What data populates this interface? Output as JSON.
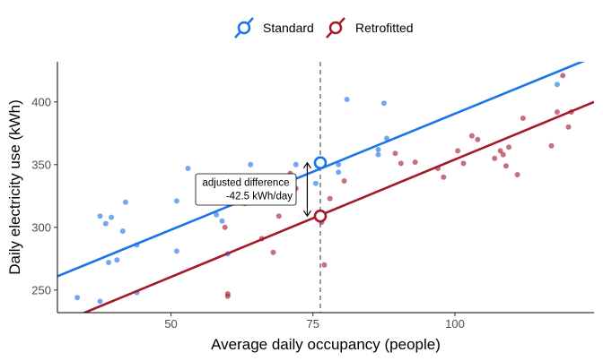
{
  "chart_data": {
    "type": "scatter",
    "xlabel": "Average daily occupancy (people)",
    "ylabel": "Daily electricity use (kWh)",
    "xlim": [
      30,
      124.5
    ],
    "ylim": [
      232,
      432
    ],
    "x_ticks": [
      50,
      75,
      100
    ],
    "y_ticks": [
      250,
      300,
      350,
      400
    ],
    "grid": false,
    "legend_position": "top",
    "reference_x": 76.3,
    "series": [
      {
        "name": "Standard",
        "color": "#1a75e8",
        "points": [
          [
            33.5,
            244
          ],
          [
            37.5,
            241
          ],
          [
            37.5,
            309
          ],
          [
            38.5,
            303
          ],
          [
            39.5,
            308
          ],
          [
            39,
            272
          ],
          [
            40.5,
            274
          ],
          [
            42,
            320
          ],
          [
            41.5,
            297
          ],
          [
            44,
            248
          ],
          [
            44,
            286
          ],
          [
            51,
            281
          ],
          [
            51,
            321
          ],
          [
            53,
            347
          ],
          [
            58,
            310
          ],
          [
            59,
            305
          ],
          [
            60,
            279
          ],
          [
            63,
            319
          ],
          [
            64,
            350
          ],
          [
            69,
            340
          ],
          [
            72,
            350
          ],
          [
            75.5,
            335
          ],
          [
            79.5,
            350
          ],
          [
            79.5,
            344
          ],
          [
            81,
            402
          ],
          [
            86.5,
            362
          ],
          [
            86.5,
            358
          ],
          [
            87.5,
            399
          ],
          [
            88,
            371
          ],
          [
            118,
            414
          ]
        ],
        "fit": {
          "x": [
            30,
            124.5
          ],
          "y": [
            261.0,
            436.0
          ]
        },
        "marker": {
          "x": 76.3,
          "y": 351.5
        }
      },
      {
        "name": "Retrofitted",
        "color": "#a31a28",
        "points": [
          [
            59.5,
            300
          ],
          [
            60,
            245
          ],
          [
            60,
            247
          ],
          [
            66,
            291
          ],
          [
            68,
            280
          ],
          [
            69,
            309
          ],
          [
            71,
            343
          ],
          [
            72,
            331
          ],
          [
            76.5,
            304
          ],
          [
            77,
            270
          ],
          [
            78,
            323
          ],
          [
            80.5,
            337
          ],
          [
            89.5,
            359
          ],
          [
            90.5,
            351
          ],
          [
            93,
            352
          ],
          [
            97,
            347
          ],
          [
            98,
            340
          ],
          [
            100.5,
            361
          ],
          [
            101.5,
            351
          ],
          [
            103,
            373
          ],
          [
            104,
            370
          ],
          [
            107,
            355
          ],
          [
            108,
            361
          ],
          [
            108.5,
            358
          ],
          [
            109,
            349
          ],
          [
            109.5,
            364
          ],
          [
            111,
            342
          ],
          [
            112,
            387
          ],
          [
            117,
            365
          ],
          [
            118,
            392
          ],
          [
            119,
            421
          ],
          [
            120,
            380
          ],
          [
            120.5,
            392
          ]
        ],
        "fit": {
          "x": [
            30,
            124.5
          ],
          "y": [
            223.0,
            400.0
          ]
        },
        "marker": {
          "x": 76.3,
          "y": 309
        }
      }
    ],
    "annotation": {
      "line1": "adjusted difference",
      "line2": "-42.5 kWh/day",
      "arrow_x": 74,
      "arrow_y_from": 351.5,
      "arrow_y_to": 309
    }
  }
}
